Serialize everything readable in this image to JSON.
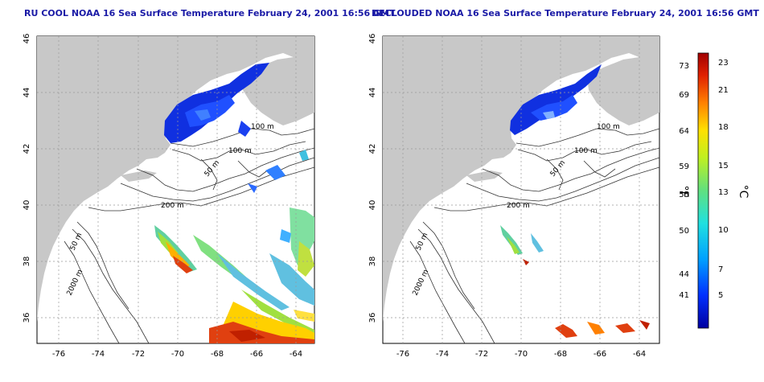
{
  "left_panel": {
    "title": "RU COOL NOAA 16 Sea Surface Temperature February 24, 2001 16:56 GMT"
  },
  "right_panel": {
    "title": "DECLOUDED NOAA 16 Sea Surface Temperature February 24, 2001 16:56 GMT"
  },
  "lat_ticks": [
    "46",
    "44",
    "42",
    "40",
    "38",
    "36"
  ],
  "lon_ticks": [
    "-76",
    "-74",
    "-72",
    "-70",
    "-68",
    "-66",
    "-64"
  ],
  "depth_labels": {
    "left": [
      "100 m",
      "100 m",
      "50 m",
      "200 m",
      "50 m",
      "2000 m"
    ],
    "right": [
      "100 m",
      "100 m",
      "50 m",
      "200 m",
      "50 m",
      "2000 m"
    ]
  },
  "colorbar": {
    "fahrenheit_ticks": [
      "73",
      "69",
      "64",
      "59",
      "55",
      "50",
      "44",
      "41"
    ],
    "celsius_ticks": [
      "23",
      "21",
      "18",
      "15",
      "13",
      "10",
      "7",
      "5"
    ],
    "fahrenheit_label": "°F",
    "celsius_label": "°C",
    "colors": [
      "#0000a0",
      "#0020ff",
      "#00a0ff",
      "#20e0e0",
      "#60e080",
      "#c0f020",
      "#ffe000",
      "#ff8000",
      "#e02000",
      "#a00000"
    ]
  },
  "colors": {
    "land": "#c8c8c8",
    "title": "#1a1aa6",
    "cold_water": "#1030e0"
  }
}
